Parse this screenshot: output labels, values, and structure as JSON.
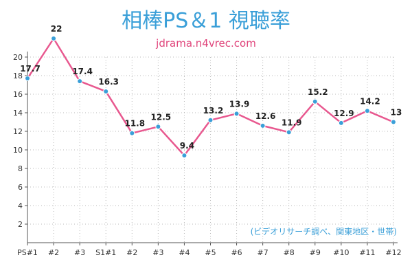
{
  "chart_data": {
    "type": "line",
    "title": "相棒PS＆1 視聴率",
    "subtitle": "jdrama.n4vrec.com",
    "note": "(ビデオリサーチ調べ、関東地区・世帯)",
    "categories": [
      "PS#1",
      "#2",
      "#3",
      "S1#1",
      "#2",
      "#3",
      "#4",
      "#5",
      "#6",
      "#7",
      "#8",
      "#9",
      "#10",
      "#11",
      "#12"
    ],
    "series": [
      {
        "values": [
          17.7,
          22,
          17.4,
          16.3,
          11.8,
          12.5,
          9.4,
          13.2,
          13.9,
          12.6,
          11.9,
          15.2,
          12.9,
          14.2,
          13
        ]
      }
    ],
    "ylim": [
      0,
      20
    ],
    "yticks": [
      2,
      4,
      6,
      8,
      10,
      12,
      14,
      16,
      18,
      20
    ],
    "grid": true,
    "colors": {
      "line": "#e8588f",
      "marker": "#3a9fd8",
      "title": "#3a9fd8",
      "subtitle": "#e0457b"
    }
  }
}
